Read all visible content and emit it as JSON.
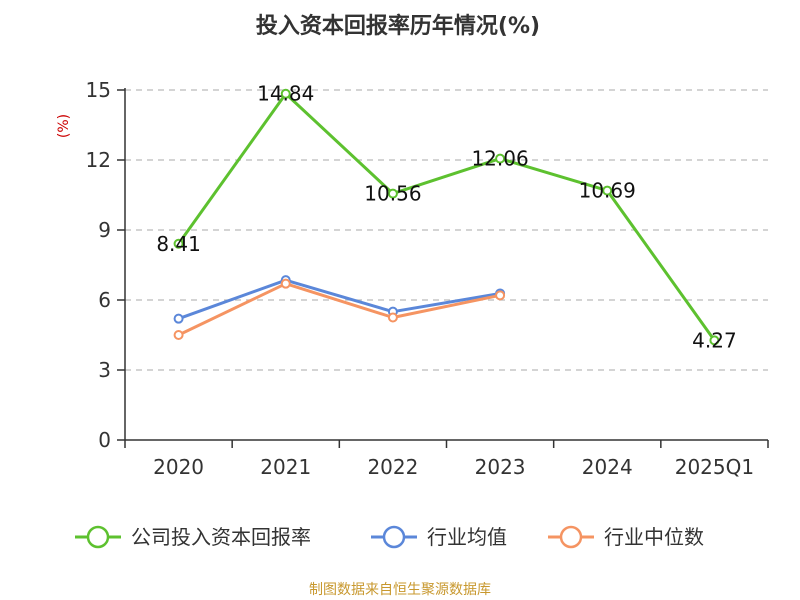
{
  "chart_data": {
    "type": "line",
    "title": "投入资本回报率历年情况(%)",
    "ylabel": "(%)",
    "categories": [
      "2020",
      "2021",
      "2022",
      "2023",
      "2024",
      "2025Q1"
    ],
    "ylim": [
      0,
      15
    ],
    "yticks": [
      0,
      3,
      6,
      9,
      12,
      15
    ],
    "grid": true,
    "legend_position": "bottom",
    "series": [
      {
        "name": "公司投入资本回报率",
        "color": "#5dc12f",
        "values": [
          8.41,
          14.84,
          10.56,
          12.06,
          10.69,
          4.27
        ],
        "labels": [
          "8.41",
          "14.84",
          "10.56",
          "12.06",
          "10.69",
          "4.27"
        ]
      },
      {
        "name": "行业均值",
        "color": "#5b87d9",
        "values": [
          5.2,
          6.85,
          5.5,
          6.28,
          null,
          null
        ]
      },
      {
        "name": "行业中位数",
        "color": "#f59462",
        "values": [
          4.5,
          6.7,
          5.25,
          6.2,
          null,
          null
        ]
      }
    ]
  },
  "source": "制图数据来自恒生聚源数据库"
}
